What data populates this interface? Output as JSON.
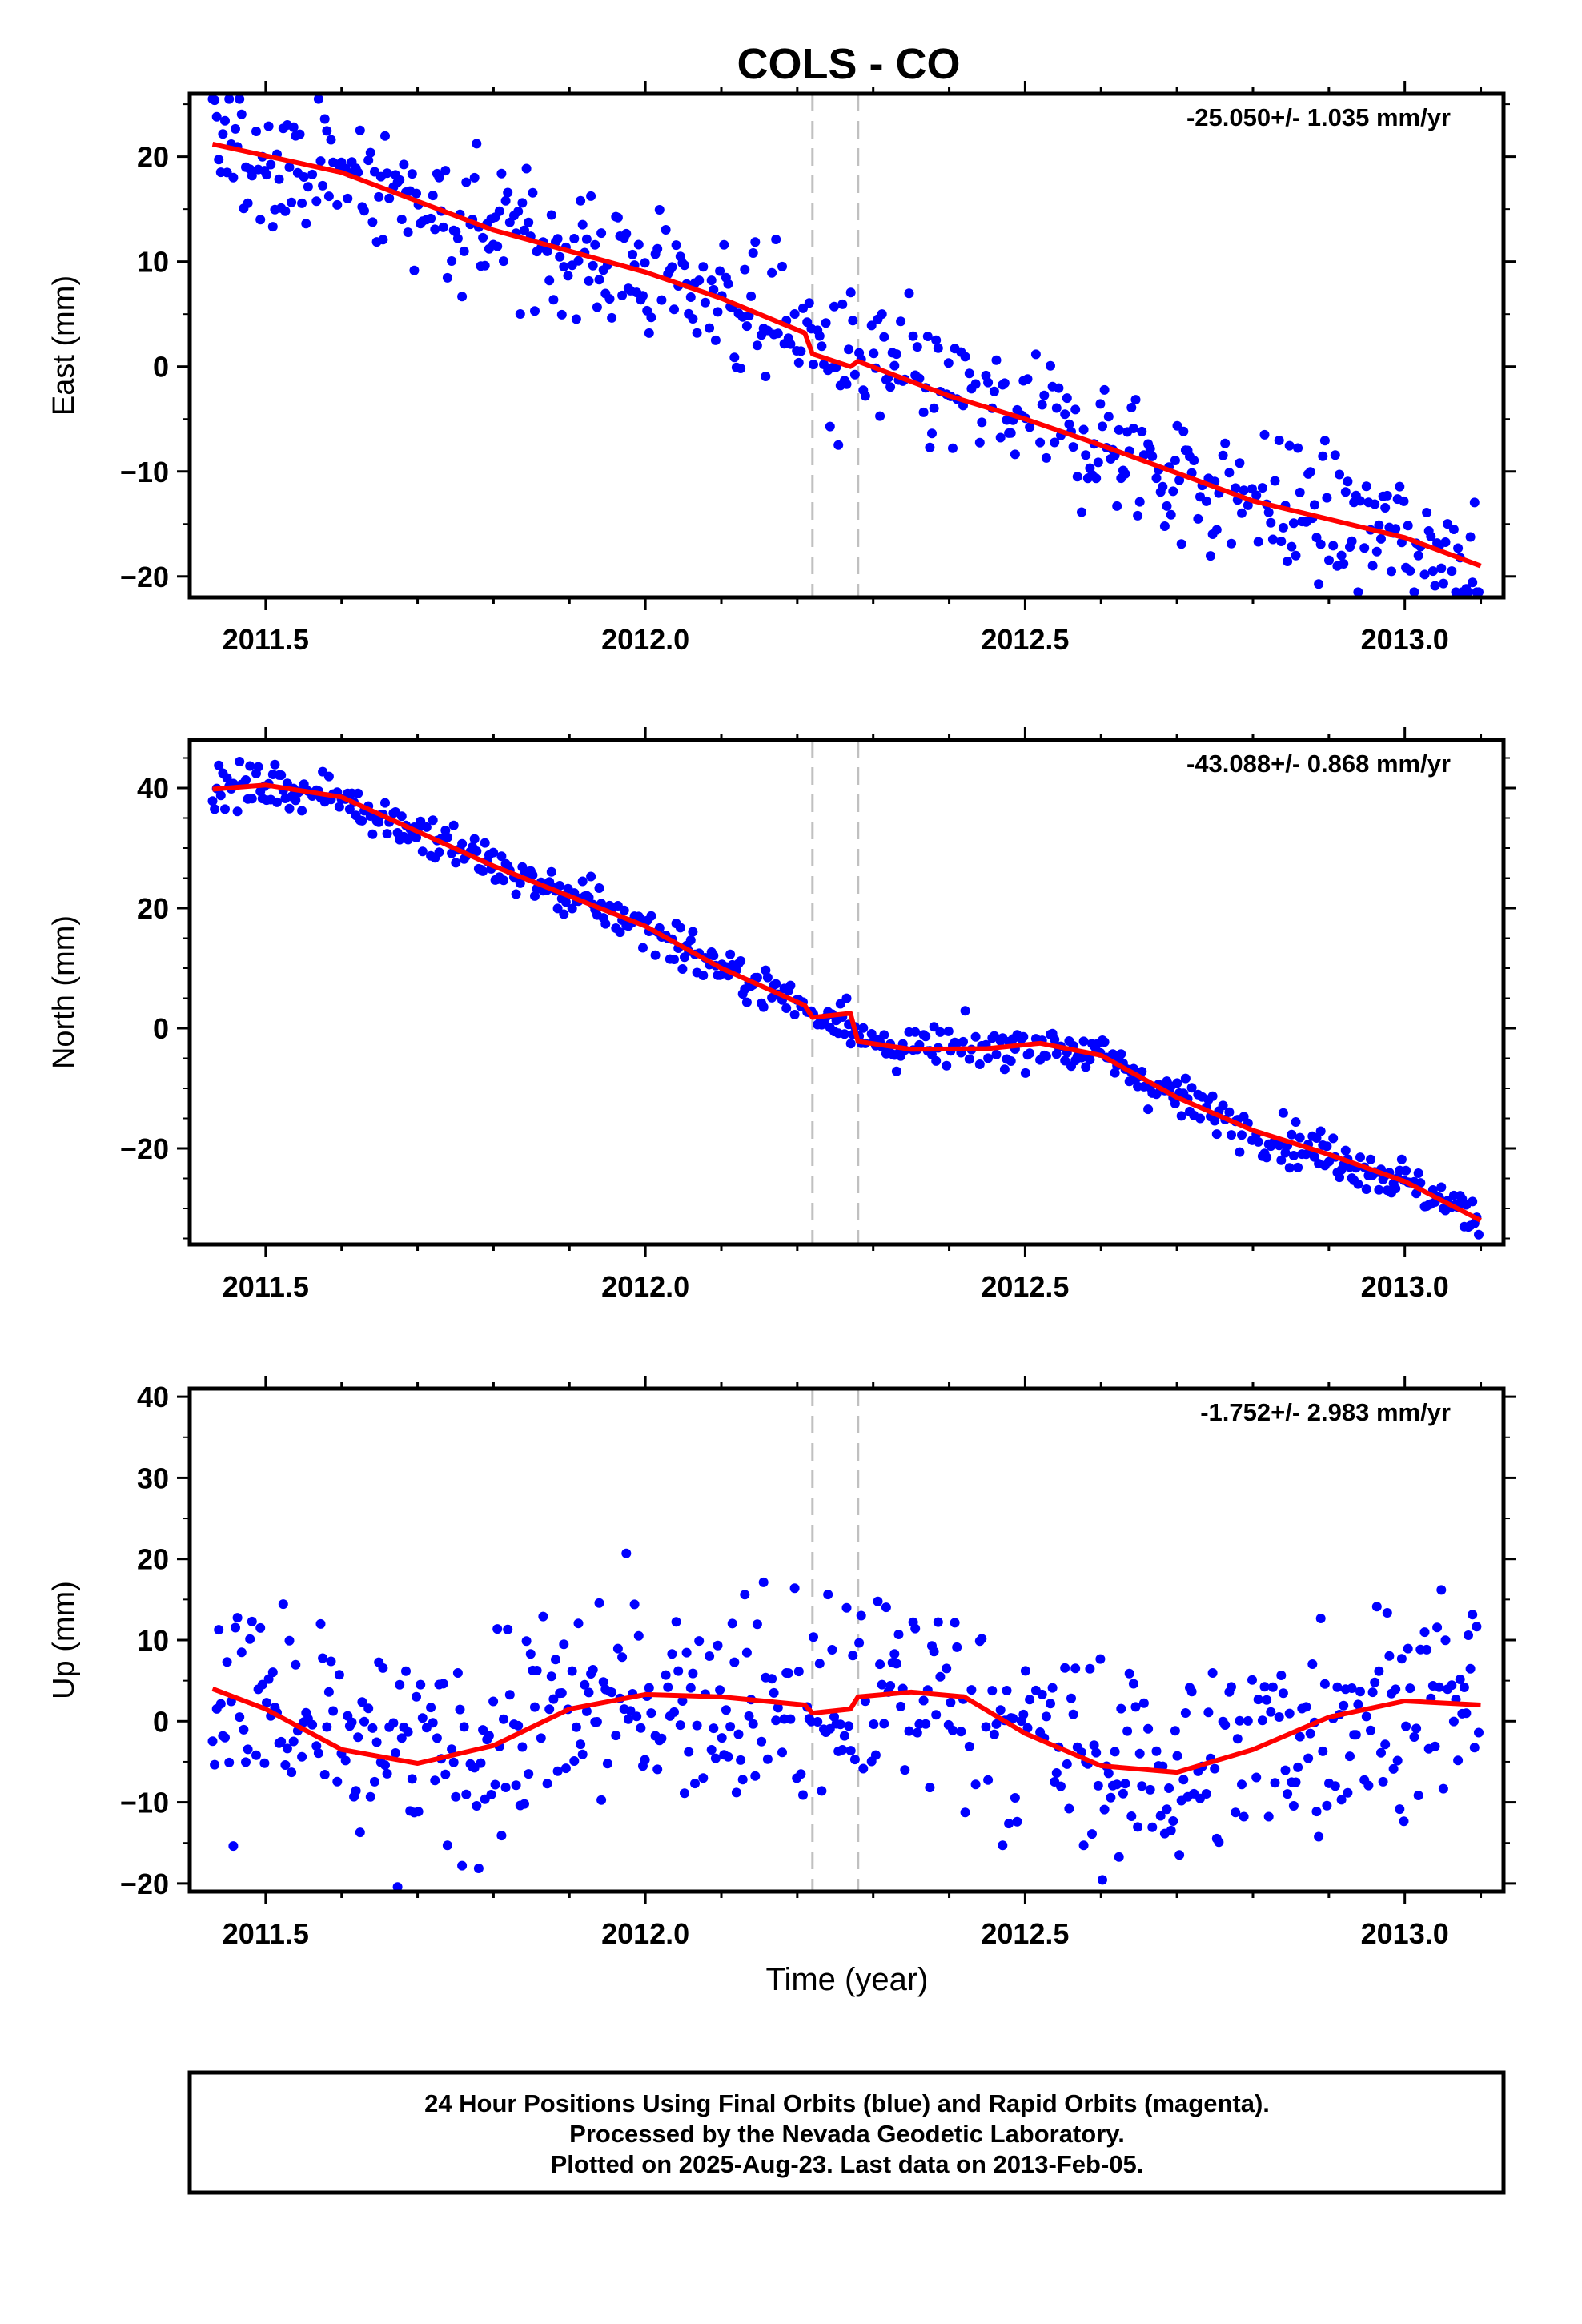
{
  "chart_data": {
    "type": "scatter",
    "title": "COLS - CO",
    "xlabel": "Time (year)",
    "xlim": [
      2011.4,
      2013.13
    ],
    "x_ticks": [
      "2011.5",
      "2012.0",
      "2012.5",
      "2013.0"
    ],
    "offsets": [
      2012.22,
      2012.28
    ],
    "first_epoch": 2011.43,
    "last_epoch": 2013.1,
    "colors": {
      "positions": "#0000ff",
      "model": "#ff0000",
      "offset_lines": "#c0c0c0"
    },
    "grid": false,
    "panels": [
      {
        "name": "east",
        "ylabel": "East (mm)",
        "ylim": [
          -22,
          26
        ],
        "y_ticks": [
          "20",
          "10",
          "0",
          "−10",
          "−20"
        ],
        "rate": "-25.050+/- 1.035 mm/yr",
        "scatter": 3.2,
        "model": {
          "x": [
            2011.43,
            2011.6,
            2011.8,
            2012.0,
            2012.1,
            2012.21,
            2012.22,
            2012.27,
            2012.28,
            2012.4,
            2012.5,
            2012.6,
            2012.8,
            2013.0,
            2013.1
          ],
          "y": [
            21.2,
            18.5,
            13.0,
            9.0,
            6.5,
            3.2,
            1.2,
            0.0,
            0.5,
            -2.8,
            -5.0,
            -7.5,
            -12.8,
            -16.3,
            -19.0
          ]
        }
      },
      {
        "name": "north",
        "ylabel": "North (mm)",
        "ylim": [
          -36,
          48
        ],
        "y_ticks": [
          "40",
          "20",
          "0",
          "−20"
        ],
        "rate": "-43.088+/- 0.868 mm/yr",
        "scatter": 1.8,
        "model": {
          "x": [
            2011.43,
            2011.5,
            2011.6,
            2011.8,
            2012.0,
            2012.1,
            2012.21,
            2012.22,
            2012.27,
            2012.28,
            2012.35,
            2012.45,
            2012.52,
            2012.6,
            2012.7,
            2012.8,
            2012.9,
            2013.0,
            2013.1
          ],
          "y": [
            39.8,
            40.5,
            38.5,
            27.0,
            17.0,
            10.0,
            3.8,
            1.8,
            2.5,
            -2.2,
            -3.5,
            -3.4,
            -2.5,
            -4.5,
            -11.5,
            -17.0,
            -21.0,
            -25.5,
            -32.0
          ]
        }
      },
      {
        "name": "up",
        "ylabel": "Up (mm)",
        "ylim": [
          -21,
          41
        ],
        "y_ticks": [
          "40",
          "30",
          "20",
          "10",
          "0",
          "−10",
          "−20"
        ],
        "rate": "-1.752+/- 2.983 mm/yr",
        "scatter": 6.5,
        "model": {
          "x": [
            2011.43,
            2011.5,
            2011.6,
            2011.7,
            2011.8,
            2011.9,
            2012.0,
            2012.1,
            2012.21,
            2012.22,
            2012.27,
            2012.28,
            2012.35,
            2012.42,
            2012.5,
            2012.6,
            2012.7,
            2012.8,
            2012.9,
            2013.0,
            2013.1
          ],
          "y": [
            4.0,
            1.5,
            -3.5,
            -5.2,
            -3.0,
            1.5,
            3.3,
            3.0,
            2.0,
            1.0,
            1.5,
            3.0,
            3.6,
            3.0,
            -1.5,
            -5.5,
            -6.3,
            -3.5,
            0.5,
            2.5,
            2.0
          ]
        }
      }
    ]
  },
  "footer": {
    "line1": "24 Hour Positions Using Final Orbits (blue) and Rapid Orbits (magenta).",
    "line2": "Processed by the Nevada Geodetic Laboratory.",
    "line3": "Plotted on 2025-Aug-23. Last data on 2013-Feb-05."
  }
}
